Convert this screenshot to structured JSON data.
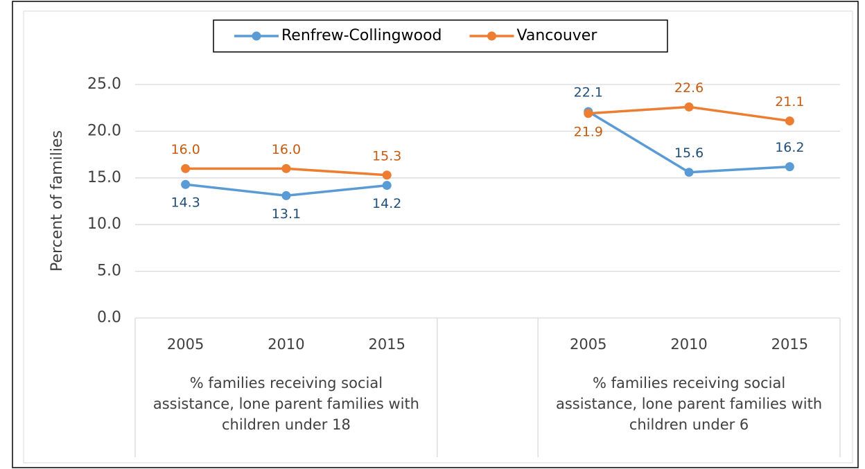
{
  "chart_data": {
    "type": "line",
    "y_axis_label": "Percent of families",
    "categories": [
      "2005",
      "2010",
      "2015",
      null,
      "2005",
      "2010",
      "2015"
    ],
    "groups": [
      "% families receiving social assistance, lone parent families with children under 18",
      "% families  receiving social assistance, lone parent families with children under 6"
    ],
    "series": [
      {
        "name": "Renfrew-Collingwood",
        "color": "#5b9bd5",
        "label_color": "#1f4e79",
        "values": [
          14.3,
          13.1,
          14.2,
          null,
          22.1,
          15.6,
          16.2
        ],
        "value_labels": [
          "14.3",
          "13.1",
          "14.2",
          null,
          "22.1",
          "15.6",
          "16.2"
        ]
      },
      {
        "name": "Vancouver",
        "color": "#ed7d31",
        "label_color": "#c55a11",
        "values": [
          16.0,
          16.0,
          15.3,
          null,
          21.9,
          22.6,
          21.1
        ],
        "value_labels": [
          "16.0",
          "16.0",
          "15.3",
          null,
          "21.9",
          "22.6",
          "21.1"
        ]
      }
    ],
    "ylim": [
      0,
      25
    ],
    "yticks": [
      {
        "value": 0,
        "label": "0.0"
      },
      {
        "value": 5,
        "label": "5.0"
      },
      {
        "value": 10,
        "label": "10.0"
      },
      {
        "value": 15,
        "label": "15.0"
      },
      {
        "value": 20,
        "label": "20.0"
      },
      {
        "value": 25,
        "label": "25.0"
      }
    ],
    "grid": true,
    "legend": "top"
  }
}
